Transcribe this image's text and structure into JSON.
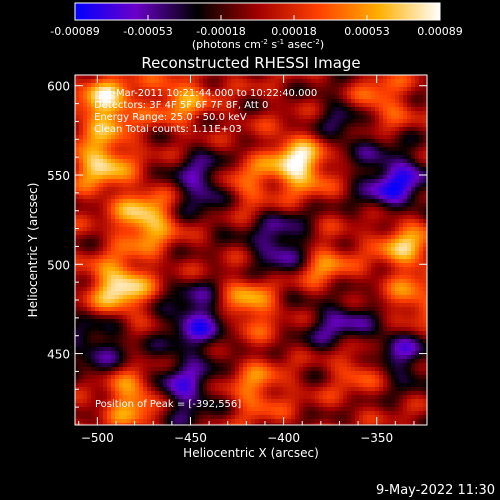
{
  "chart_data": {
    "type": "heatmap",
    "title": "Reconstructed RHESSI Image",
    "xlabel": "Heliocentric X (arcsec)",
    "ylabel": "Heliocentric Y (arcsec)",
    "xlim": [
      -512,
      -323
    ],
    "ylim": [
      410,
      606
    ],
    "xticks": [
      -500,
      -450,
      -400,
      -350
    ],
    "yticks": [
      450,
      500,
      550,
      600
    ],
    "colorbar": {
      "range": [
        -0.00089,
        0.00089
      ],
      "ticks": [
        "-0.00089",
        "-0.00053",
        "-0.00018",
        "0.00018",
        "0.00053",
        "0.00089"
      ],
      "unit_prefix": "(photons cm",
      "unit_sup1": "-2",
      "unit_mid": " s",
      "unit_sup2": "-1",
      "unit_mid2": " asec",
      "unit_sup3": "-2",
      "unit_suffix": ")",
      "colormap": [
        "#0000ff",
        "#6a00c8",
        "#000000",
        "#a00000",
        "#ff4000",
        "#ffb000",
        "#ffffff"
      ]
    },
    "annotations": [
      "1-Mar-2011 10:21:44.000 to 10:22:40.000",
      "Detectors: 3F 4F 5F 6F 7F 8F, Att 0",
      "Energy Range: 25.0 - 50.0 keV",
      "Clean     Total counts: 1.11E+03",
      "Position of Peak = [-392,556]"
    ],
    "peak": [
      -392,
      556
    ],
    "hot_spots": [
      {
        "x": -392,
        "y": 556,
        "level": 1.0
      },
      {
        "x": -488,
        "y": 487,
        "level": 0.95
      },
      {
        "x": -474,
        "y": 525,
        "level": 0.85
      },
      {
        "x": -498,
        "y": 557,
        "level": 0.8
      },
      {
        "x": -495,
        "y": 590,
        "level": 0.85
      },
      {
        "x": -425,
        "y": 545,
        "level": 0.7
      },
      {
        "x": -350,
        "y": 590,
        "level": 0.6
      },
      {
        "x": -335,
        "y": 512,
        "level": 0.7
      },
      {
        "x": -420,
        "y": 478,
        "level": 0.7
      },
      {
        "x": -380,
        "y": 500,
        "level": 0.6
      },
      {
        "x": -480,
        "y": 425,
        "level": 0.75
      },
      {
        "x": -360,
        "y": 445,
        "level": 0.55
      },
      {
        "x": -415,
        "y": 430,
        "level": 0.5
      },
      {
        "x": -455,
        "y": 593,
        "level": 0.55
      },
      {
        "x": -330,
        "y": 478,
        "level": 0.5
      }
    ],
    "cold_spots": [
      {
        "x": -440,
        "y": 545,
        "level": -0.8
      },
      {
        "x": -340,
        "y": 545,
        "level": -0.85
      },
      {
        "x": -400,
        "y": 510,
        "level": -0.7
      },
      {
        "x": -445,
        "y": 470,
        "level": -0.75
      },
      {
        "x": -370,
        "y": 465,
        "level": -0.6
      },
      {
        "x": -455,
        "y": 430,
        "level": -0.7
      },
      {
        "x": -338,
        "y": 450,
        "level": -0.6
      },
      {
        "x": -500,
        "y": 455,
        "level": -0.5
      },
      {
        "x": -365,
        "y": 580,
        "level": -0.5
      }
    ]
  },
  "footer": {
    "date": "9-May-2022 11:30"
  }
}
